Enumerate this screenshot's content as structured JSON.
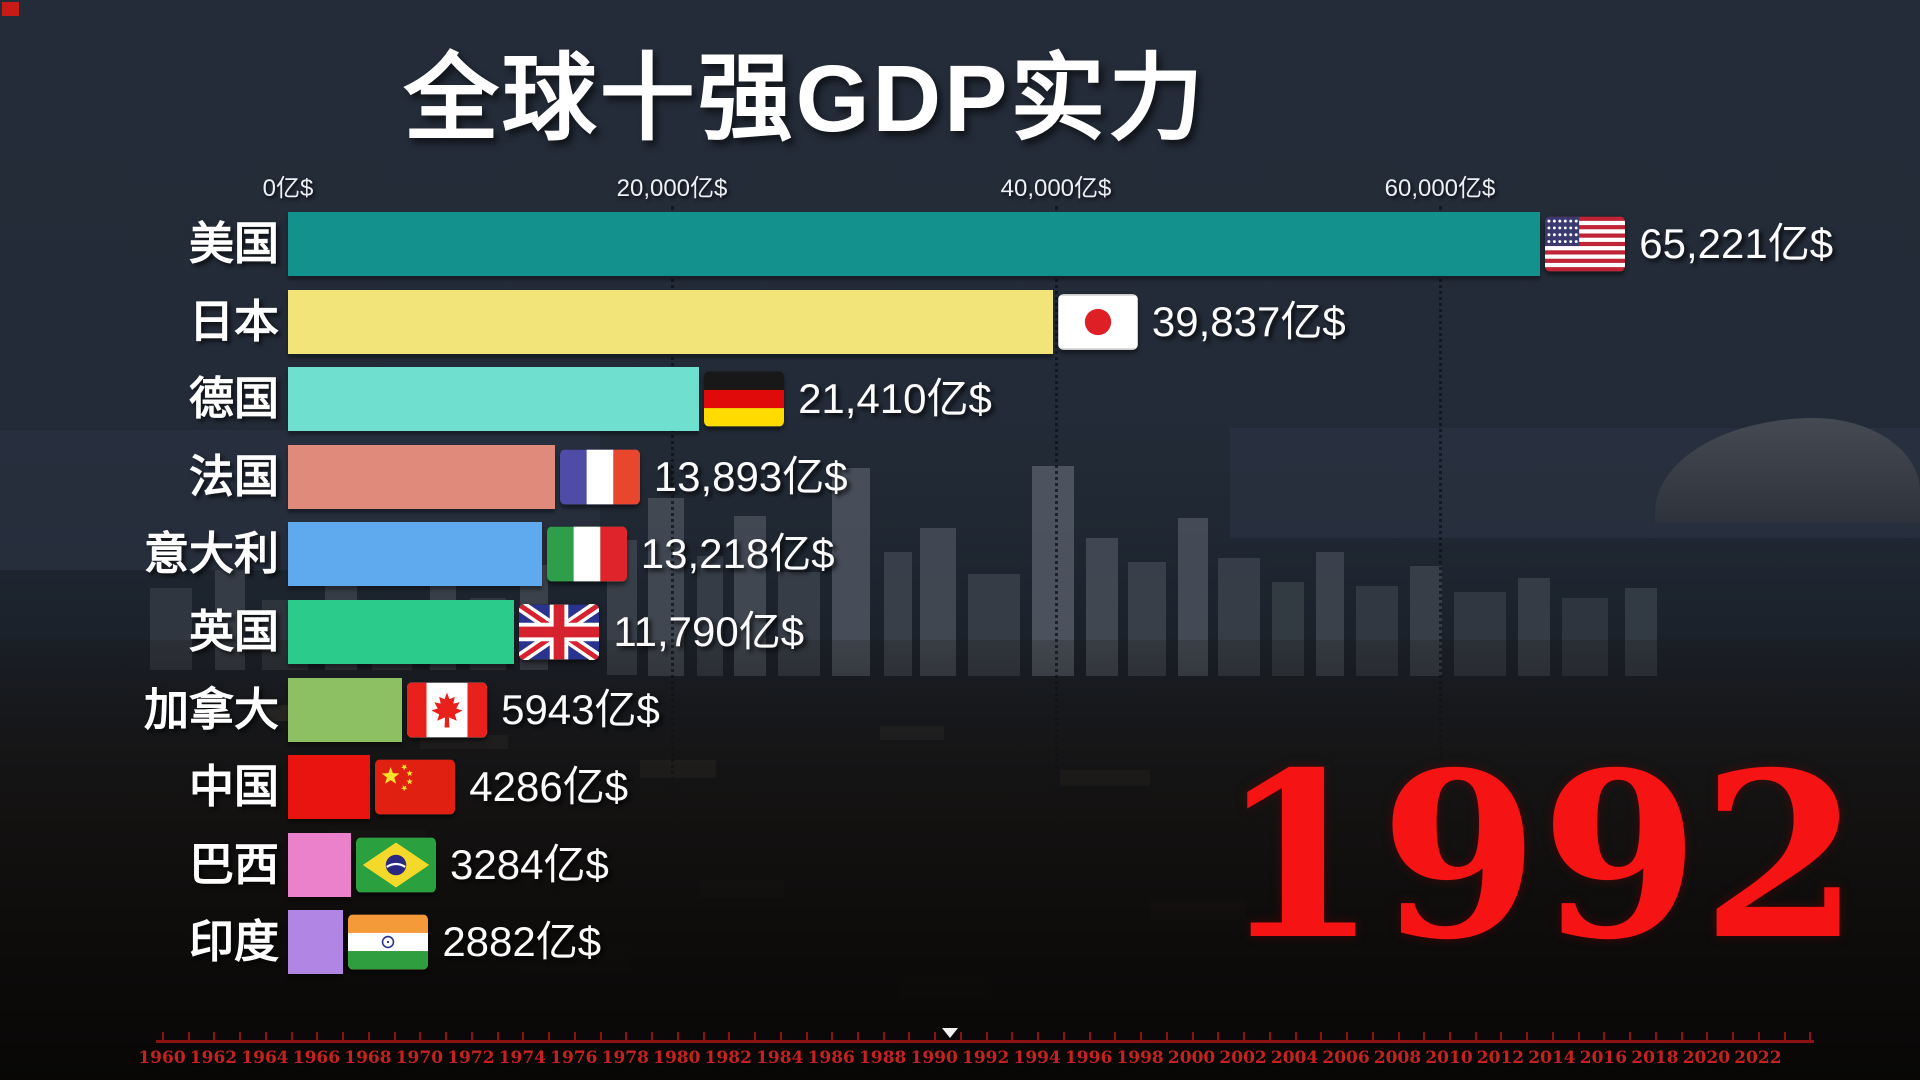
{
  "title": "全球十强GDP实力",
  "chart_data": {
    "type": "bar",
    "orientation": "horizontal",
    "unit": "亿$",
    "title": "全球十强GDP实力",
    "current_year": "1992",
    "x_axis": {
      "ticks": [
        {
          "label": "0亿$",
          "value": 0
        },
        {
          "label": "20,000亿$",
          "value": 20000
        },
        {
          "label": "40,000亿$",
          "value": 40000
        },
        {
          "label": "60,000亿$",
          "value": 60000
        }
      ],
      "gridlines": "dotted",
      "xlim": [
        0,
        81000
      ]
    },
    "series": [
      {
        "country": "美国",
        "country_en": "usa",
        "value": 65221,
        "value_label": "65,221亿$",
        "bar_color": "#12918D"
      },
      {
        "country": "日本",
        "country_en": "japan",
        "value": 39837,
        "value_label": "39,837亿$",
        "bar_color": "#F2E478"
      },
      {
        "country": "德国",
        "country_en": "germany",
        "value": 21410,
        "value_label": "21,410亿$",
        "bar_color": "#6FDFD0"
      },
      {
        "country": "法国",
        "country_en": "france",
        "value": 13893,
        "value_label": "13,893亿$",
        "bar_color": "#E08A7B"
      },
      {
        "country": "意大利",
        "country_en": "italy",
        "value": 13218,
        "value_label": "13,218亿$",
        "bar_color": "#5FA9EE"
      },
      {
        "country": "英国",
        "country_en": "uk",
        "value": 11790,
        "value_label": "11,790亿$",
        "bar_color": "#2BCB8C"
      },
      {
        "country": "加拿大",
        "country_en": "canada",
        "value": 5943,
        "value_label": "5943亿$",
        "bar_color": "#8DC063"
      },
      {
        "country": "中国",
        "country_en": "china",
        "value": 4286,
        "value_label": "4286亿$",
        "bar_color": "#E91310"
      },
      {
        "country": "巴西",
        "country_en": "brazil",
        "value": 3284,
        "value_label": "3284亿$",
        "bar_color": "#EC81CB"
      },
      {
        "country": "印度",
        "country_en": "india",
        "value": 2882,
        "value_label": "2882亿$",
        "bar_color": "#B085E3"
      }
    ]
  },
  "year_display": {
    "text": "1992",
    "color": "#F51313"
  },
  "timeline": {
    "start_year": 1960,
    "end_year": 2022,
    "label_step": 2,
    "current_year": 1992,
    "line_color": "#8C1212",
    "label_color": "#C52121",
    "labels": [
      "1960",
      "1962",
      "1964",
      "1966",
      "1968",
      "1970",
      "1972",
      "1974",
      "1976",
      "1978",
      "1980",
      "1982",
      "1984",
      "1986",
      "1988",
      "1990",
      "1992",
      "1994",
      "1996",
      "1998",
      "2000",
      "2002",
      "2004",
      "2006",
      "2008",
      "2010",
      "2012",
      "2014",
      "2016",
      "2018",
      "2020",
      "2022"
    ]
  }
}
